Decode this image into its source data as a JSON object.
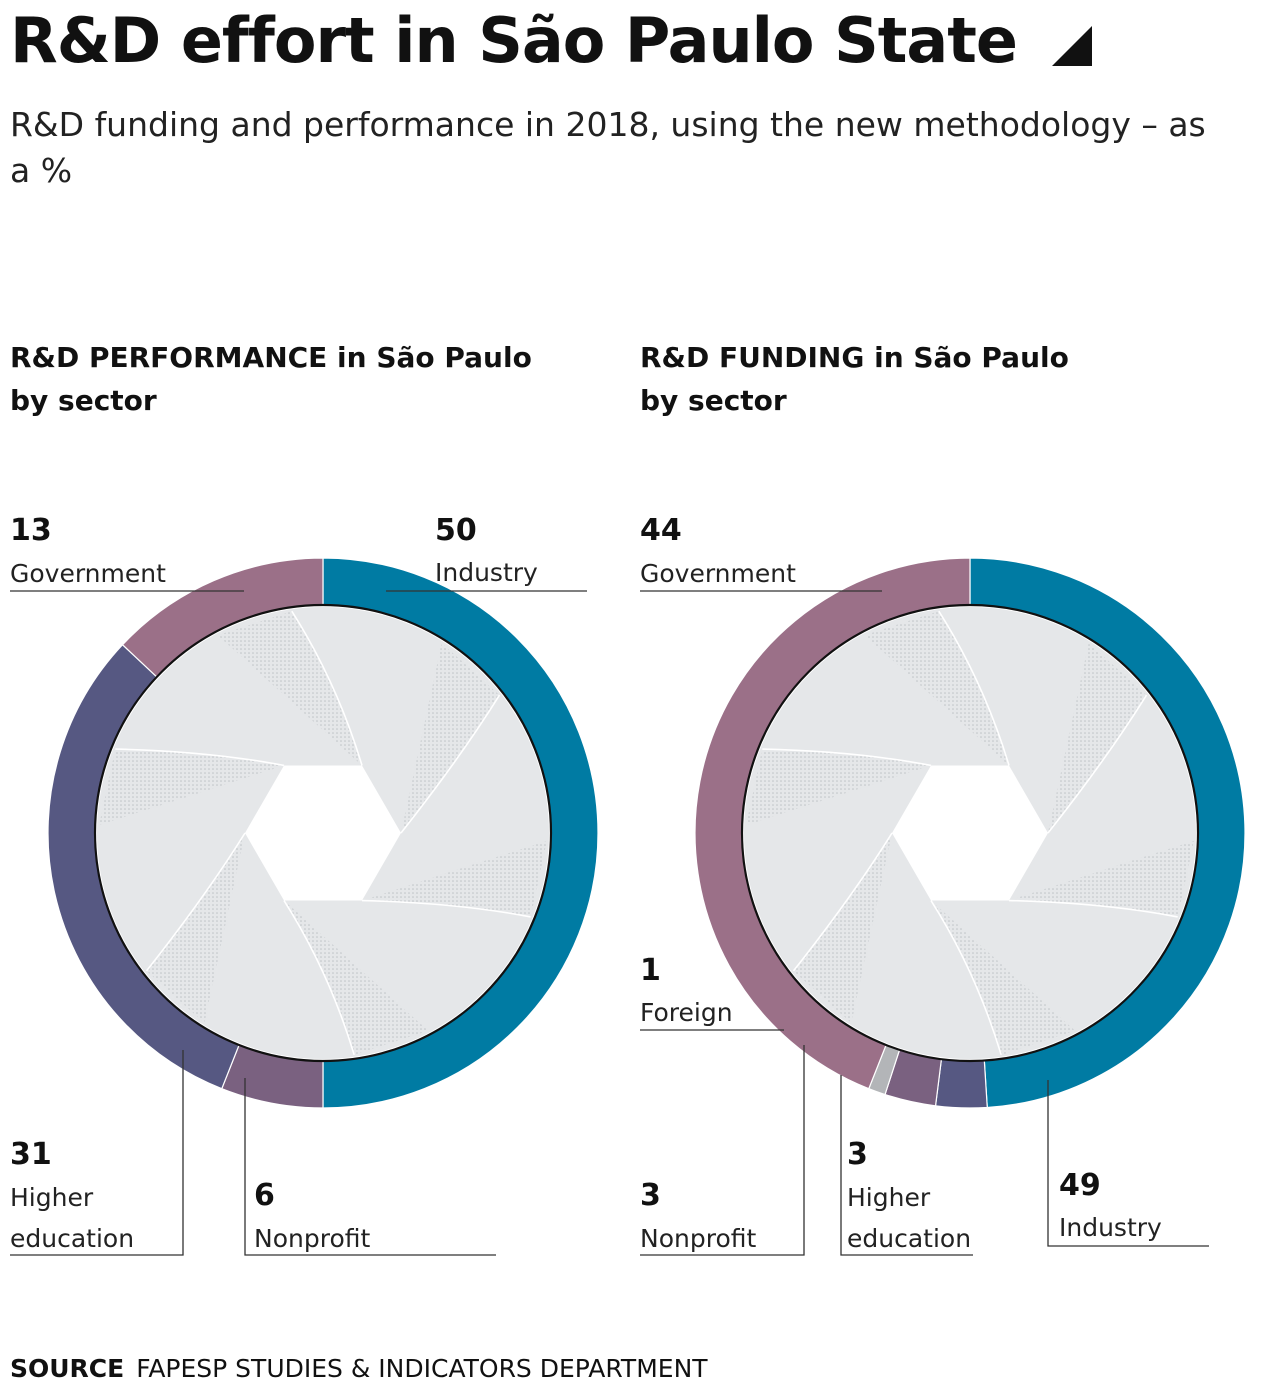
{
  "header": {
    "title": "R&D effort in São Paulo State",
    "subtitle": "R&D funding and performance in 2018, using the new methodology – as a %"
  },
  "colors": {
    "industry": "#007ba3",
    "government": "#9b7088",
    "higher_education": "#565882",
    "nonprofit": "#7a6180",
    "foreign": "#b3b5b8",
    "blade": "#e5e7e9"
  },
  "icons": {
    "title": "triangle-corner-icon"
  },
  "chart_data": [
    {
      "type": "pie",
      "title_line1": "R&D PERFORMANCE in São Paulo",
      "title_line2": "by sector",
      "slices": [
        {
          "key": "industry",
          "label": "Industry",
          "value": 50,
          "value_text": "50"
        },
        {
          "key": "nonprofit",
          "label": "Nonprofit",
          "value": 6,
          "value_text": "6"
        },
        {
          "key": "higher_education",
          "label": "Higher education",
          "label_line1": "Higher",
          "label_line2": "education",
          "value": 31,
          "value_text": "31"
        },
        {
          "key": "government",
          "label": "Government",
          "value": 13,
          "value_text": "13"
        }
      ]
    },
    {
      "type": "pie",
      "title_line1": "R&D FUNDING in São Paulo",
      "title_line2": "by sector",
      "slices": [
        {
          "key": "industry",
          "label": "Industry",
          "value": 49,
          "value_text": "49"
        },
        {
          "key": "higher_education",
          "label": "Higher education",
          "label_line1": "Higher",
          "label_line2": "education",
          "value": 3,
          "value_text": "3"
        },
        {
          "key": "nonprofit",
          "label": "Nonprofit",
          "value": 3,
          "value_text": "3"
        },
        {
          "key": "foreign",
          "label": "Foreign",
          "value": 1,
          "value_text": "1"
        },
        {
          "key": "government",
          "label": "Government",
          "value": 44,
          "value_text": "44"
        }
      ]
    }
  ],
  "footer": {
    "source_label": "SOURCE",
    "source_text": "FAPESP STUDIES & INDICATORS DEPARTMENT"
  }
}
